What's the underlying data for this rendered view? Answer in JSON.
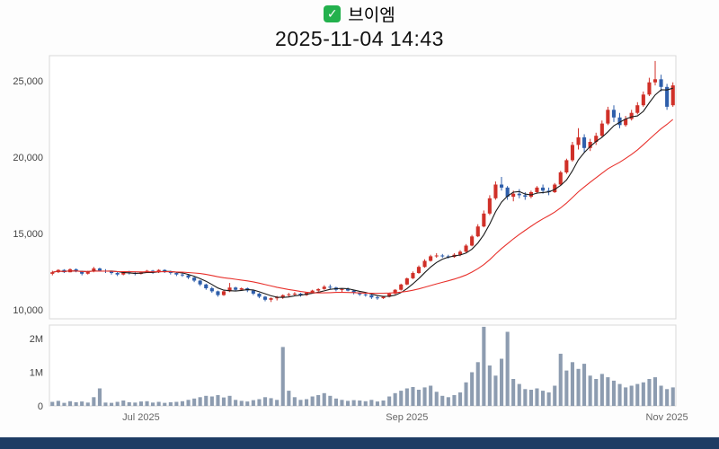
{
  "header": {
    "stock_name": "브이엠",
    "datetime": "2025-11-04 14:43",
    "icon": "green-checkbox-icon",
    "icon_glyph": "✓",
    "icon_color": "#23b14d"
  },
  "footer": {
    "color": "#1e3c64"
  },
  "chart_data": {
    "type": "candlestick",
    "panels": [
      "price",
      "volume"
    ],
    "title": "브이엠",
    "subtitle": "2025-11-04 14:43",
    "legend_position": "none",
    "grid": false,
    "price_axis": {
      "range": [
        9400,
        26650
      ],
      "ticks": [
        {
          "v": 10000,
          "label": "10,000"
        },
        {
          "v": 15000,
          "label": "15,000"
        },
        {
          "v": 20000,
          "label": "20,000"
        },
        {
          "v": 25000,
          "label": "25,000"
        }
      ]
    },
    "volume_axis": {
      "max": 2400000,
      "ticks": [
        {
          "v": 0,
          "label": "0"
        },
        {
          "v": 1000000,
          "label": "1M"
        },
        {
          "v": 2000000,
          "label": "2M"
        }
      ]
    },
    "x_ticks": [
      {
        "label": "Jul 2025",
        "index": 15
      },
      {
        "label": "Sep 2025",
        "index": 60
      },
      {
        "label": "Nov 2025",
        "index": 104
      }
    ],
    "colors": {
      "up": "#d03028",
      "down": "#2f5fab",
      "ma_fast": "#1a1a1a",
      "ma_slow": "#e8312c",
      "volume": "#8d9cb0",
      "frame": "#d9d9d9",
      "axis_text": "#444444",
      "x_text": "#666666"
    },
    "ma_windows": {
      "fast": 5,
      "slow": 20
    },
    "candles_format": [
      "open",
      "high",
      "low",
      "close",
      "volume"
    ],
    "candles": [
      [
        12350,
        12550,
        12250,
        12450,
        120000
      ],
      [
        12450,
        12650,
        12400,
        12600,
        150000
      ],
      [
        12600,
        12650,
        12400,
        12450,
        90000
      ],
      [
        12450,
        12700,
        12450,
        12650,
        140000
      ],
      [
        12650,
        12700,
        12450,
        12500,
        110000
      ],
      [
        12500,
        12550,
        12250,
        12350,
        130000
      ],
      [
        12350,
        12550,
        12300,
        12500,
        100000
      ],
      [
        12500,
        12800,
        12450,
        12700,
        260000
      ],
      [
        12700,
        12750,
        12500,
        12550,
        520000
      ],
      [
        12550,
        12650,
        12400,
        12500,
        100000
      ],
      [
        12500,
        12550,
        12300,
        12400,
        90000
      ],
      [
        12400,
        12500,
        12200,
        12300,
        120000
      ],
      [
        12300,
        12500,
        12250,
        12450,
        160000
      ],
      [
        12450,
        12550,
        12300,
        12400,
        110000
      ],
      [
        12400,
        12500,
        12250,
        12350,
        100000
      ],
      [
        12350,
        12500,
        12300,
        12450,
        130000
      ],
      [
        12450,
        12600,
        12400,
        12550,
        140000
      ],
      [
        12550,
        12600,
        12350,
        12450,
        100000
      ],
      [
        12450,
        12650,
        12400,
        12600,
        120000
      ],
      [
        12600,
        12650,
        12400,
        12500,
        90000
      ],
      [
        12500,
        12550,
        12300,
        12400,
        110000
      ],
      [
        12400,
        12450,
        12200,
        12300,
        120000
      ],
      [
        12300,
        12400,
        12150,
        12250,
        140000
      ],
      [
        12250,
        12300,
        12000,
        12100,
        180000
      ],
      [
        12100,
        12150,
        11800,
        11900,
        220000
      ],
      [
        11900,
        11950,
        11550,
        11650,
        260000
      ],
      [
        11650,
        11700,
        11300,
        11400,
        300000
      ],
      [
        11400,
        11500,
        11100,
        11200,
        280000
      ],
      [
        11200,
        11250,
        10850,
        10950,
        320000
      ],
      [
        10950,
        11300,
        10900,
        11200,
        250000
      ],
      [
        11200,
        11750,
        11150,
        11450,
        300000
      ],
      [
        11450,
        11500,
        11200,
        11300,
        180000
      ],
      [
        11300,
        11450,
        11250,
        11400,
        150000
      ],
      [
        11400,
        11450,
        11150,
        11250,
        130000
      ],
      [
        11250,
        11300,
        10950,
        11050,
        170000
      ],
      [
        11050,
        11100,
        10750,
        10850,
        200000
      ],
      [
        10850,
        10900,
        10550,
        10650,
        260000
      ],
      [
        10650,
        10800,
        10500,
        10750,
        230000
      ],
      [
        10750,
        10900,
        10600,
        10800,
        180000
      ],
      [
        10800,
        11000,
        10700,
        10950,
        1750000
      ],
      [
        10950,
        11100,
        10850,
        11000,
        450000
      ],
      [
        11000,
        11150,
        10900,
        11050,
        260000
      ],
      [
        11050,
        11100,
        10850,
        10950,
        180000
      ],
      [
        10950,
        11150,
        10900,
        11100,
        200000
      ],
      [
        11100,
        11300,
        11050,
        11250,
        280000
      ],
      [
        11250,
        11400,
        11150,
        11350,
        320000
      ],
      [
        11350,
        11600,
        11300,
        11500,
        380000
      ],
      [
        11500,
        11650,
        11350,
        11450,
        300000
      ],
      [
        11450,
        11500,
        11200,
        11300,
        220000
      ],
      [
        11300,
        11400,
        11150,
        11350,
        180000
      ],
      [
        11350,
        11450,
        11200,
        11250,
        150000
      ],
      [
        11250,
        11300,
        11000,
        11100,
        170000
      ],
      [
        11100,
        11150,
        10900,
        11000,
        160000
      ],
      [
        11000,
        11100,
        10850,
        10950,
        140000
      ],
      [
        10950,
        11000,
        10700,
        10800,
        180000
      ],
      [
        10800,
        10900,
        10650,
        10750,
        130000
      ],
      [
        10750,
        10900,
        10700,
        10850,
        160000
      ],
      [
        10850,
        11100,
        10800,
        11050,
        280000
      ],
      [
        11050,
        11350,
        11000,
        11300,
        380000
      ],
      [
        11300,
        11700,
        11250,
        11650,
        450000
      ],
      [
        11650,
        12100,
        11600,
        12050,
        520000
      ],
      [
        12050,
        12500,
        12000,
        12400,
        560000
      ],
      [
        12400,
        12900,
        12350,
        12800,
        480000
      ],
      [
        12800,
        13300,
        12750,
        13200,
        550000
      ],
      [
        13200,
        13600,
        13150,
        13500,
        600000
      ],
      [
        13500,
        13700,
        13400,
        13550,
        420000
      ],
      [
        13550,
        13650,
        13400,
        13500,
        300000
      ],
      [
        13500,
        13600,
        13350,
        13450,
        260000
      ],
      [
        13450,
        13700,
        13400,
        13600,
        320000
      ],
      [
        13600,
        13900,
        13500,
        13800,
        400000
      ],
      [
        13800,
        14300,
        13750,
        14200,
        700000
      ],
      [
        14200,
        14900,
        14150,
        14800,
        1000000
      ],
      [
        14800,
        15600,
        14750,
        15450,
        1300000
      ],
      [
        15450,
        16500,
        15400,
        16300,
        2350000
      ],
      [
        16300,
        17500,
        16200,
        17300,
        1200000
      ],
      [
        17300,
        18400,
        17200,
        18200,
        900000
      ],
      [
        18200,
        18700,
        17800,
        18000,
        1400000
      ],
      [
        18000,
        18100,
        17200,
        17400,
        2200000
      ],
      [
        17400,
        17800,
        17100,
        17600,
        800000
      ],
      [
        17600,
        17900,
        17300,
        17500,
        650000
      ],
      [
        17500,
        17700,
        17200,
        17400,
        500000
      ],
      [
        17400,
        17800,
        17300,
        17700,
        480000
      ],
      [
        17700,
        18100,
        17600,
        18000,
        520000
      ],
      [
        18000,
        18200,
        17600,
        17800,
        450000
      ],
      [
        17800,
        18000,
        17500,
        17700,
        400000
      ],
      [
        17700,
        18300,
        17650,
        18200,
        600000
      ],
      [
        18200,
        19100,
        18150,
        19000,
        1550000
      ],
      [
        19000,
        19900,
        18900,
        19800,
        1050000
      ],
      [
        19800,
        21000,
        19700,
        20800,
        1300000
      ],
      [
        20800,
        21900,
        20500,
        21300,
        1100000
      ],
      [
        21300,
        21500,
        20300,
        20600,
        1250000
      ],
      [
        20600,
        21200,
        20400,
        21000,
        900000
      ],
      [
        21000,
        21600,
        20800,
        21400,
        800000
      ],
      [
        21400,
        22400,
        21300,
        22200,
        950000
      ],
      [
        22200,
        23300,
        22100,
        23100,
        850000
      ],
      [
        23100,
        23400,
        22300,
        22600,
        750000
      ],
      [
        22600,
        22900,
        21900,
        22100,
        650000
      ],
      [
        22100,
        22700,
        22000,
        22500,
        550000
      ],
      [
        22500,
        23100,
        22400,
        22900,
        600000
      ],
      [
        22900,
        23600,
        22800,
        23400,
        650000
      ],
      [
        23400,
        24300,
        23300,
        24100,
        700000
      ],
      [
        24100,
        25200,
        24000,
        24900,
        800000
      ],
      [
        24900,
        26300,
        24700,
        25100,
        850000
      ],
      [
        25100,
        25400,
        24300,
        24600,
        600000
      ],
      [
        24600,
        24800,
        23100,
        23300,
        500000
      ],
      [
        23400,
        24900,
        23300,
        24700,
        550000
      ]
    ]
  }
}
